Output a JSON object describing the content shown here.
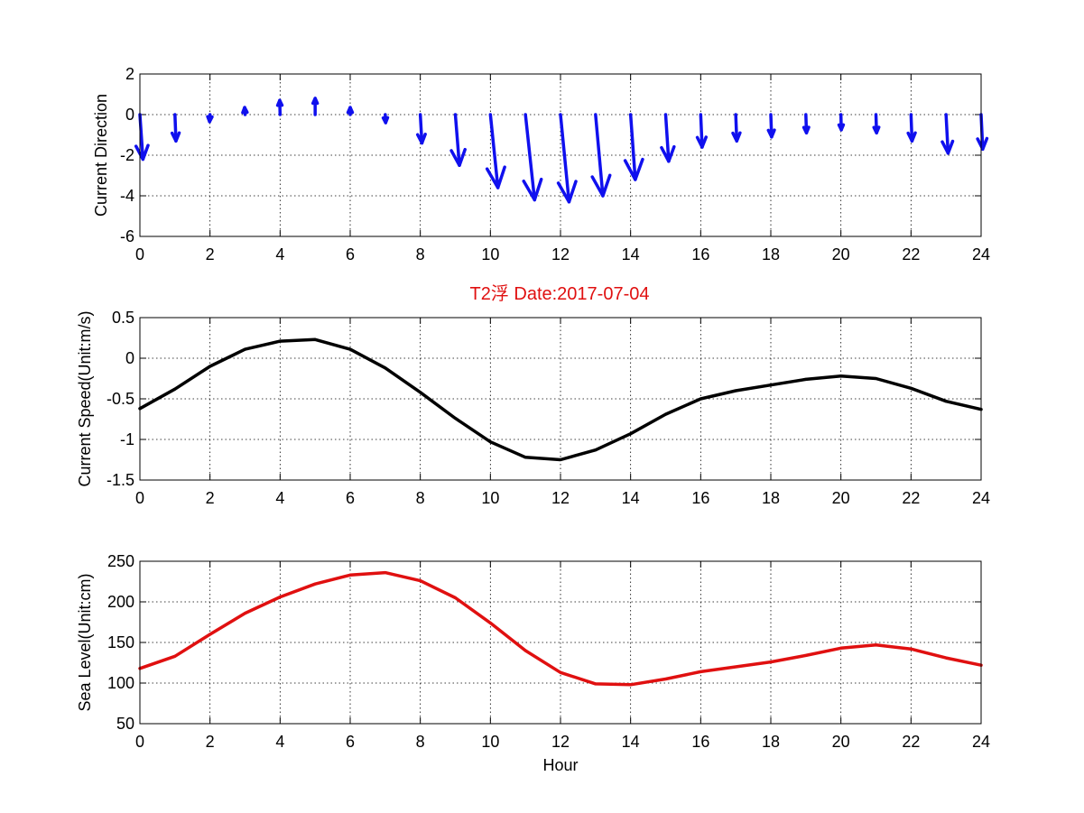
{
  "figure": {
    "title": "T2浮    Date:2017-07-04",
    "title_color": "#e01010"
  },
  "chart_data": [
    {
      "type": "quiver",
      "ylabel": "Current Direction",
      "xlabel": "",
      "xlim": [
        0,
        24
      ],
      "ylim": [
        -6,
        2
      ],
      "xticks": [
        0,
        2,
        4,
        6,
        8,
        10,
        12,
        14,
        16,
        18,
        20,
        22,
        24
      ],
      "yticks": [
        2,
        0,
        -2,
        -4,
        -6
      ],
      "grid": true,
      "color": "#1010ee",
      "vectors": [
        {
          "x": 0,
          "u": 0.15,
          "v": -2.2
        },
        {
          "x": 1,
          "u": 0.05,
          "v": -1.3
        },
        {
          "x": 2,
          "u": -0.02,
          "v": -0.35
        },
        {
          "x": 3,
          "u": -0.02,
          "v": 0.35
        },
        {
          "x": 4,
          "u": -0.02,
          "v": 0.7
        },
        {
          "x": 5,
          "u": 0.0,
          "v": 0.8
        },
        {
          "x": 6,
          "u": 0.0,
          "v": 0.35
        },
        {
          "x": 7,
          "u": 0.02,
          "v": -0.4
        },
        {
          "x": 8,
          "u": 0.08,
          "v": -1.4
        },
        {
          "x": 9,
          "u": 0.2,
          "v": -2.5
        },
        {
          "x": 10,
          "u": 0.37,
          "v": -3.6
        },
        {
          "x": 11,
          "u": 0.45,
          "v": -4.2
        },
        {
          "x": 12,
          "u": 0.42,
          "v": -4.3
        },
        {
          "x": 13,
          "u": 0.36,
          "v": -4.0
        },
        {
          "x": 14,
          "u": 0.23,
          "v": -3.2
        },
        {
          "x": 15,
          "u": 0.15,
          "v": -2.3
        },
        {
          "x": 16,
          "u": 0.07,
          "v": -1.6
        },
        {
          "x": 17,
          "u": 0.05,
          "v": -1.3
        },
        {
          "x": 18,
          "u": 0.04,
          "v": -1.1
        },
        {
          "x": 19,
          "u": 0.03,
          "v": -0.9
        },
        {
          "x": 20,
          "u": 0.02,
          "v": -0.75
        },
        {
          "x": 21,
          "u": 0.03,
          "v": -0.9
        },
        {
          "x": 22,
          "u": 0.05,
          "v": -1.3
        },
        {
          "x": 23,
          "u": 0.1,
          "v": -1.9
        },
        {
          "x": 24,
          "u": 0.08,
          "v": -1.7
        }
      ]
    },
    {
      "type": "line",
      "ylabel": "Current Speed(Unit:m/s)",
      "xlabel": "",
      "xlim": [
        0,
        24
      ],
      "ylim": [
        -1.5,
        0.5
      ],
      "xticks": [
        0,
        2,
        4,
        6,
        8,
        10,
        12,
        14,
        16,
        18,
        20,
        22,
        24
      ],
      "yticks": [
        0.5,
        0,
        -0.5,
        -1,
        -1.5
      ],
      "grid": true,
      "color": "#000000",
      "x": [
        0,
        1,
        2,
        3,
        4,
        5,
        6,
        7,
        8,
        9,
        10,
        11,
        12,
        13,
        14,
        15,
        16,
        17,
        18,
        19,
        20,
        21,
        22,
        23,
        24
      ],
      "values": [
        -0.62,
        -0.38,
        -0.1,
        0.11,
        0.21,
        0.23,
        0.11,
        -0.12,
        -0.42,
        -0.74,
        -1.03,
        -1.22,
        -1.25,
        -1.13,
        -0.93,
        -0.69,
        -0.5,
        -0.4,
        -0.33,
        -0.26,
        -0.22,
        -0.25,
        -0.37,
        -0.53,
        -0.63
      ]
    },
    {
      "type": "line",
      "ylabel": "Sea Level(Unit:cm)",
      "xlabel": "Hour",
      "xlim": [
        0,
        24
      ],
      "ylim": [
        50,
        250
      ],
      "xticks": [
        0,
        2,
        4,
        6,
        8,
        10,
        12,
        14,
        16,
        18,
        20,
        22,
        24
      ],
      "yticks": [
        250,
        200,
        150,
        100,
        50
      ],
      "grid": true,
      "color": "#e01010",
      "x": [
        0,
        1,
        2,
        3,
        4,
        5,
        6,
        7,
        8,
        9,
        10,
        11,
        12,
        13,
        14,
        15,
        16,
        17,
        18,
        19,
        20,
        21,
        22,
        23,
        24
      ],
      "values": [
        118,
        133,
        160,
        186,
        206,
        222,
        233,
        236,
        226,
        205,
        174,
        140,
        113,
        99,
        98,
        105,
        114,
        120,
        126,
        134,
        143,
        147,
        142,
        131,
        122
      ]
    }
  ]
}
